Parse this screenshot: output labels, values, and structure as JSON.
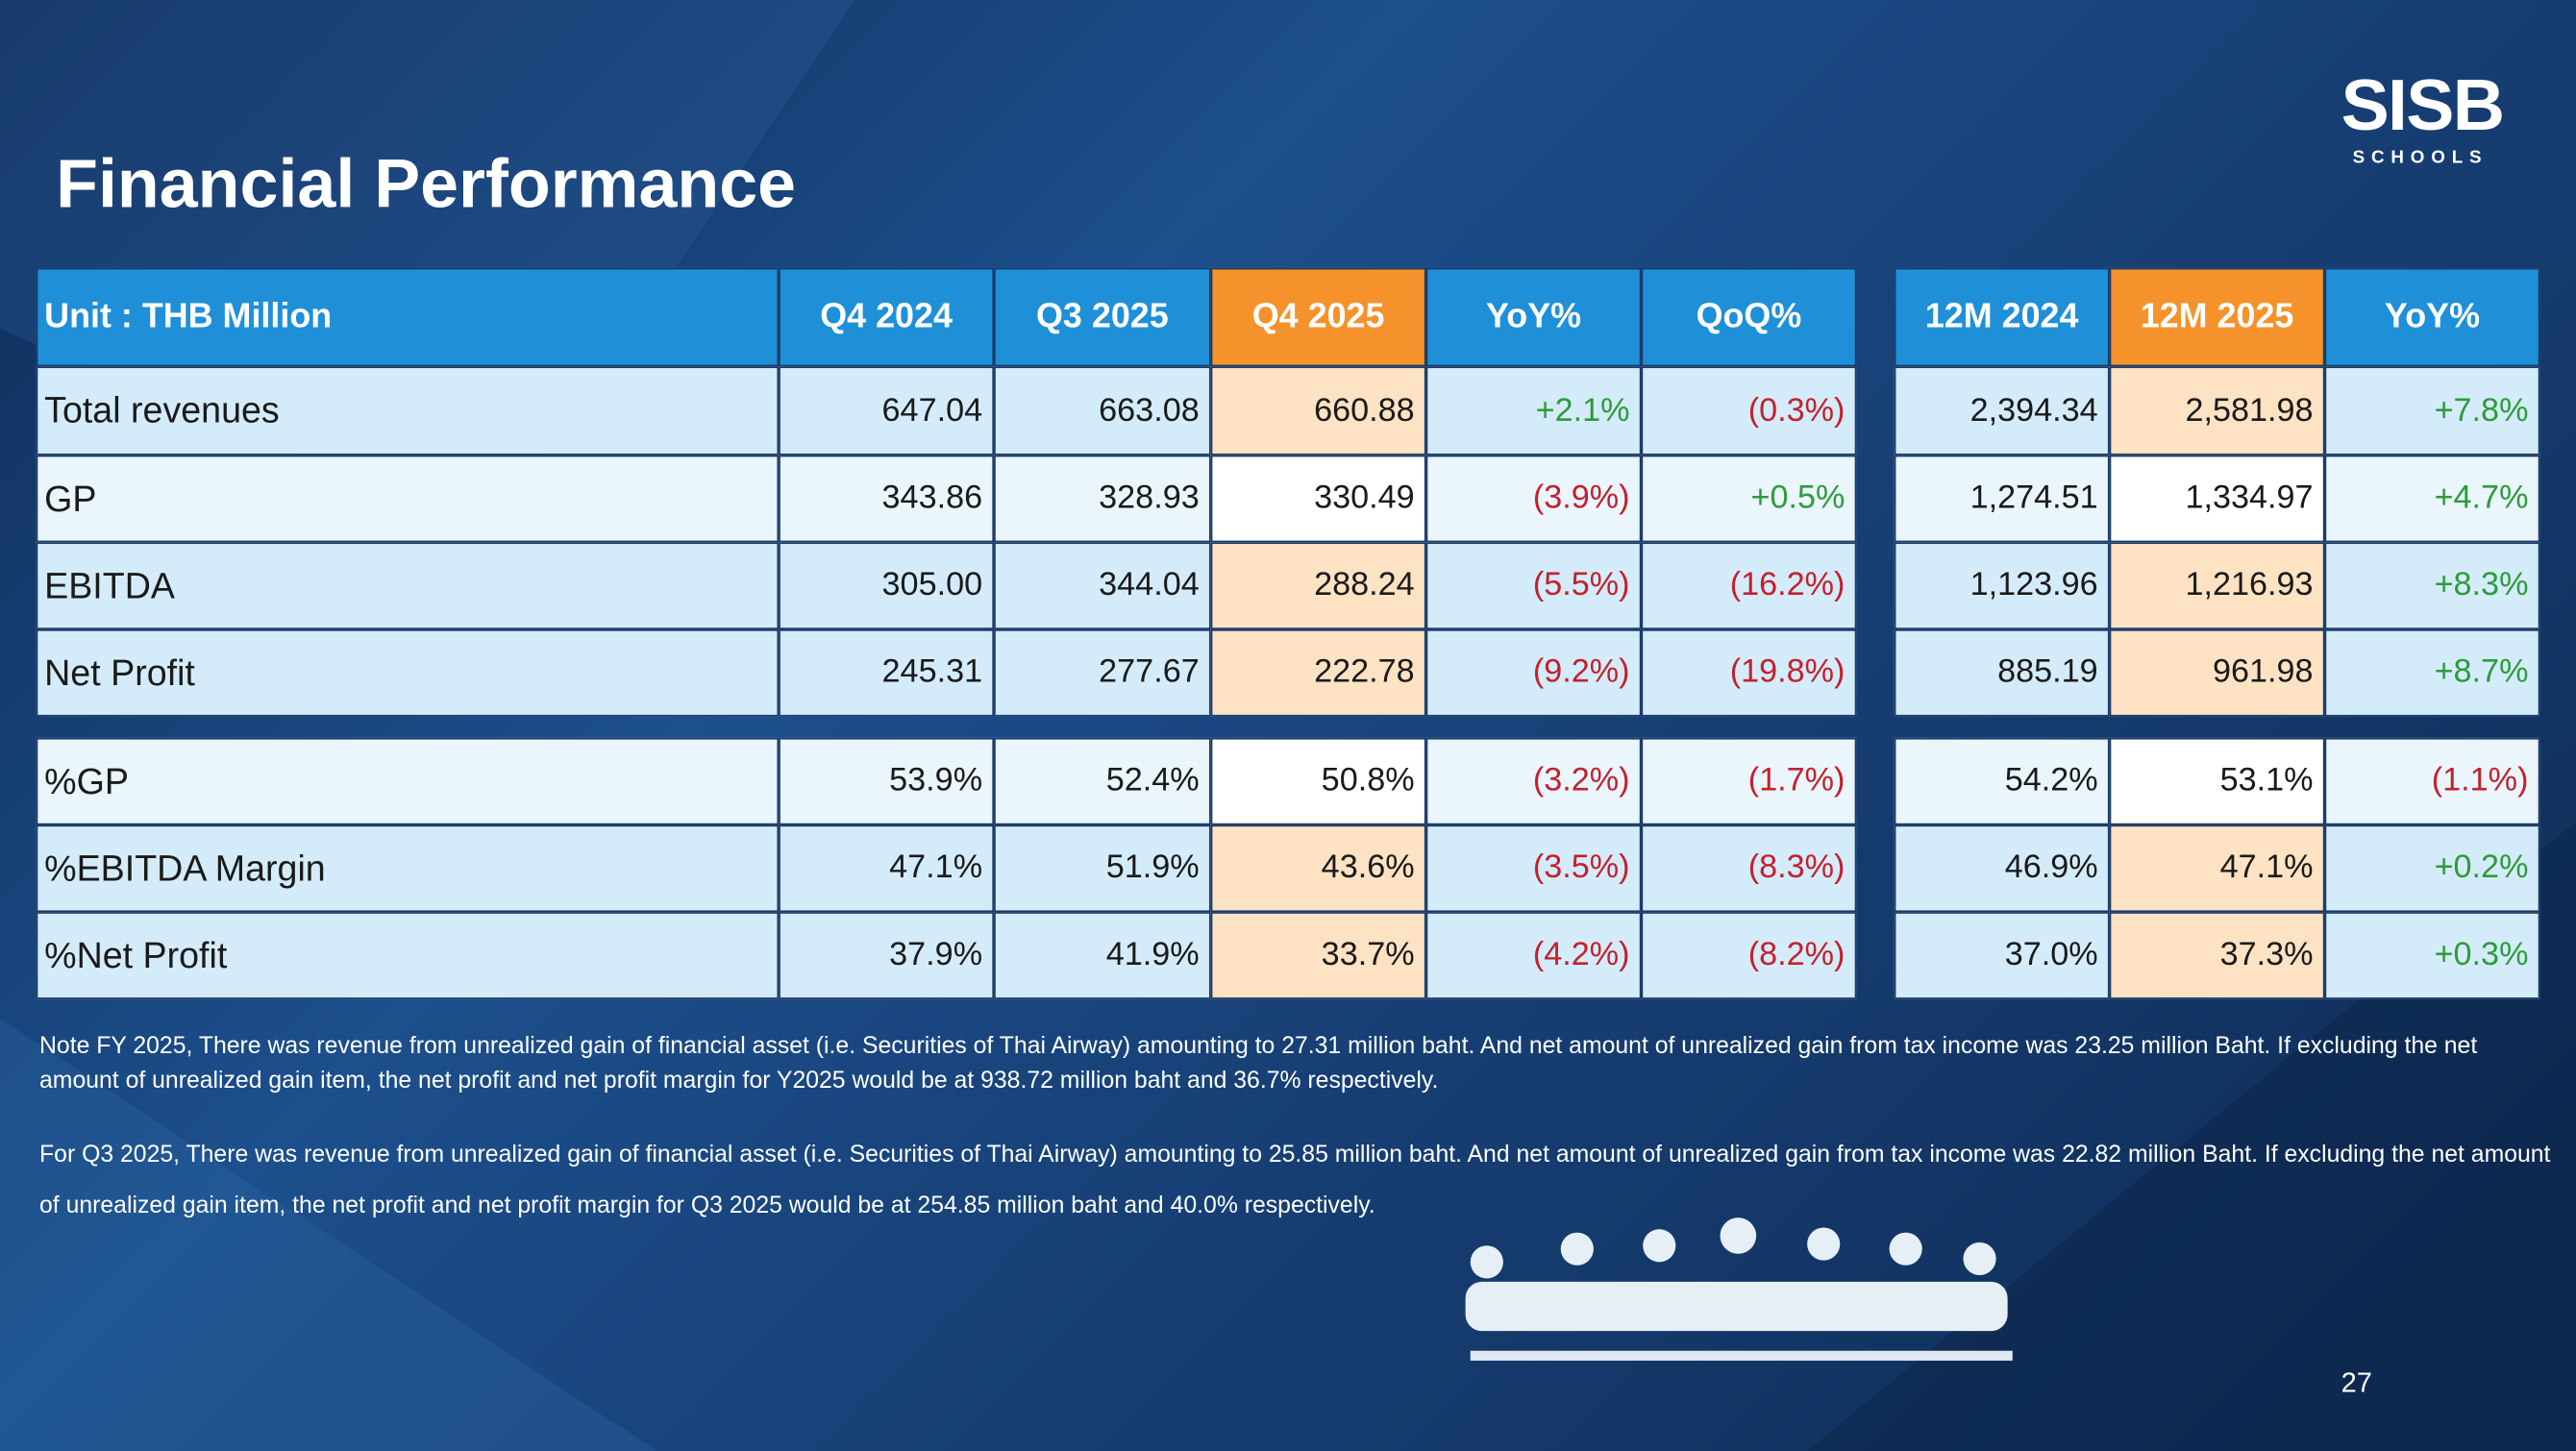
{
  "header": {
    "title": "Financial Performance",
    "logo": "SISB",
    "logo_sub": "SCHOOLS"
  },
  "table": {
    "header": [
      "Unit : THB Million",
      "Q4 2024",
      "Q3 2025",
      "Q4 2025",
      "YoY%",
      "QoQ%",
      "12M 2024",
      "12M 2025",
      "YoY%"
    ],
    "rows": [
      {
        "cells": [
          "Total revenues",
          "647.04",
          "663.08",
          "660.88",
          "+2.1%",
          "(0.3%)",
          "2,394.34",
          "2,581.98",
          "+7.8%"
        ]
      },
      {
        "cells": [
          "GP",
          "343.86",
          "328.93",
          "330.49",
          "(3.9%)",
          "+0.5%",
          "1,274.51",
          "1,334.97",
          "+4.7%"
        ]
      },
      {
        "cells": [
          "EBITDA",
          "305.00",
          "344.04",
          "288.24",
          "(5.5%)",
          "(16.2%)",
          "1,123.96",
          "1,216.93",
          "+8.3%"
        ]
      },
      {
        "cells": [
          "Net Profit",
          "245.31",
          "277.67",
          "222.78",
          "(9.2%)",
          "(19.8%)",
          "885.19",
          "961.98",
          "+8.7%"
        ]
      },
      {
        "cells": [
          "%GP",
          "53.9%",
          "52.4%",
          "50.8%",
          "(3.2%)",
          "(1.7%)",
          "54.2%",
          "53.1%",
          "(1.1%)"
        ]
      },
      {
        "cells": [
          "%EBITDA Margin",
          "47.1%",
          "51.9%",
          "43.6%",
          "(3.5%)",
          "(8.3%)",
          "46.9%",
          "47.1%",
          "+0.2%"
        ]
      },
      {
        "cells": [
          "%Net Profit",
          "37.9%",
          "41.9%",
          "33.7%",
          "(4.2%)",
          "(8.2%)",
          "37.0%",
          "37.3%",
          "+0.3%"
        ]
      }
    ]
  },
  "notes": [
    "Note  FY 2025, There was revenue from unrealized gain of financial asset (i.e. Securities of Thai Airway) amounting to 27.31 million baht. And net amount of unrealized gain from tax income was 23.25 million Baht. If excluding the net amount of unrealized gain item, the net profit and net profit margin for Y2025 would be at 938.72 million baht and 36.7% respectively.",
    "For Q3 2025, There was revenue from unrealized gain of financial asset (i.e. Securities of Thai Airway) amounting to 25.85 million baht. And net amount of unrealized gain from tax income was 22.82 million Baht. If excluding the net amount of unrealized gain item, the net profit and net profit margin for Q3 2025 would be at 254.85 million baht and 40.0% respectively."
  ],
  "page_number": "27"
}
